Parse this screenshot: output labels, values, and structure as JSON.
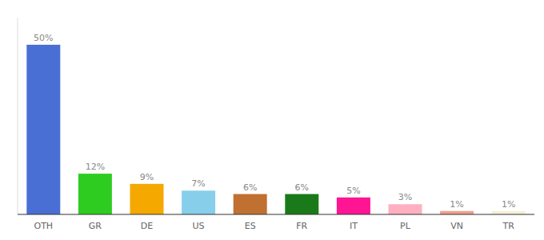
{
  "chart_data": {
    "type": "bar",
    "categories": [
      "OTH",
      "GR",
      "DE",
      "US",
      "ES",
      "FR",
      "IT",
      "PL",
      "VN",
      "TR"
    ],
    "values": [
      50,
      12,
      9,
      7,
      6,
      6,
      5,
      3,
      1,
      1
    ],
    "value_labels": [
      "50%",
      "12%",
      "9%",
      "7%",
      "6%",
      "6%",
      "5%",
      "3%",
      "1%",
      "1%"
    ],
    "colors": [
      "#4a6fd4",
      "#2ecc20",
      "#f5a800",
      "#87ceeb",
      "#c07030",
      "#1a7a1a",
      "#ff1493",
      "#ffb0c0",
      "#f0a090",
      "#f5f0d8"
    ],
    "ylim": [
      0,
      58
    ],
    "data_labels": true,
    "tick_labels": "x",
    "grid": false
  }
}
